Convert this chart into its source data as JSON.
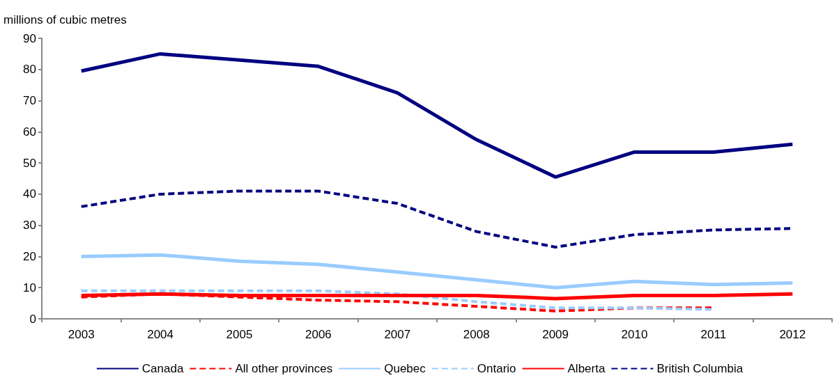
{
  "chart_data": {
    "type": "line",
    "ylabel": "millions of cubic metres",
    "categories": [
      "2003",
      "2004",
      "2005",
      "2006",
      "2007",
      "2008",
      "2009",
      "2010",
      "2011",
      "2012"
    ],
    "ylim": [
      0,
      90
    ],
    "yticks": [
      0,
      10,
      20,
      30,
      40,
      50,
      60,
      70,
      80,
      90
    ],
    "grid": false,
    "legend": "bottom",
    "marker": "none",
    "series": [
      {
        "name": "Canada",
        "color": "#000080",
        "line_style": "solid",
        "values": [
          79.5,
          85,
          83,
          81,
          72.5,
          57.5,
          45.5,
          53.5,
          53.5,
          56
        ]
      },
      {
        "name": "All other provinces",
        "color": "#ff0000",
        "line_style": "dashed",
        "values": [
          7,
          8,
          7,
          6,
          5.5,
          4,
          2.5,
          3.5,
          3.5,
          null
        ]
      },
      {
        "name": "Quebec",
        "color": "#99ccff",
        "line_style": "solid",
        "values": [
          20,
          20.5,
          18.5,
          17.5,
          15,
          12.5,
          10,
          12,
          11,
          11.5
        ]
      },
      {
        "name": "Ontario",
        "color": "#99ccff",
        "line_style": "dashed",
        "values": [
          9,
          9,
          9,
          9,
          8,
          5.5,
          3.5,
          3.5,
          3,
          null
        ]
      },
      {
        "name": "Alberta",
        "color": "#ff0000",
        "line_style": "solid",
        "values": [
          7.5,
          8,
          7.5,
          7.5,
          7.5,
          7.5,
          6.5,
          7.5,
          7.5,
          8
        ]
      },
      {
        "name": "British Columbia",
        "color": "#000080",
        "line_style": "dashed",
        "values": [
          36,
          40,
          41,
          41,
          37,
          28,
          23,
          27,
          28.5,
          29
        ]
      }
    ]
  }
}
